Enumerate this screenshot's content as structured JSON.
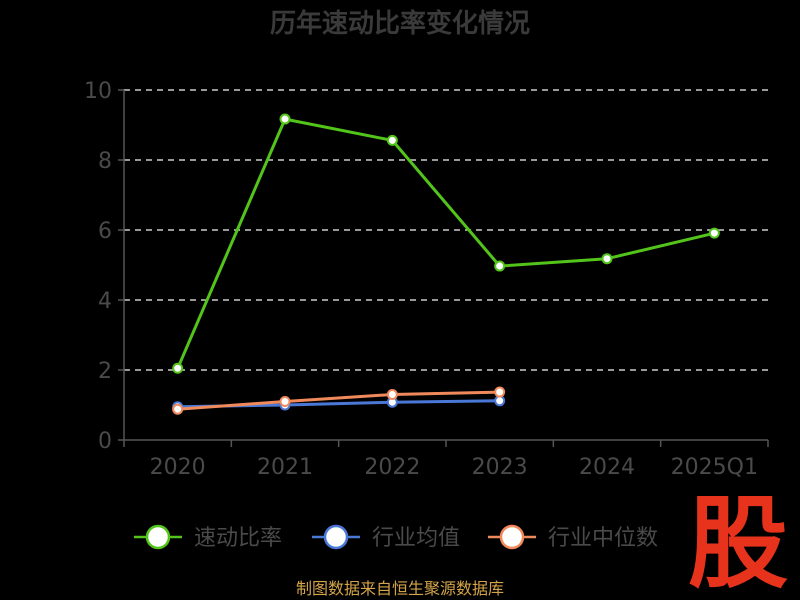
{
  "title": "历年速动比率变化情况",
  "source": "制图数据来自恒生聚源数据库",
  "logo": "股",
  "colors": {
    "background": "#000000",
    "grid": "#cccccc",
    "axis": "#555555",
    "text": "#4a4a4a"
  },
  "chart_data": {
    "type": "line",
    "categories": [
      "2020",
      "2021",
      "2022",
      "2023",
      "2024",
      "2025Q1"
    ],
    "ylim": [
      0,
      10
    ],
    "yticks": [
      "0",
      "2",
      "4",
      "6",
      "8",
      "10"
    ],
    "grid": true,
    "legend_position": "bottom",
    "series": [
      {
        "name": "速动比率",
        "color": "#52c41a",
        "values": [
          2.05,
          9.17,
          8.56,
          4.97,
          5.18,
          5.91
        ]
      },
      {
        "name": "行业均值",
        "color": "#4a78d6",
        "values": [
          0.95,
          1.0,
          1.08,
          1.12,
          null,
          null
        ]
      },
      {
        "name": "行业中位数",
        "color": "#f08a5c",
        "values": [
          0.88,
          1.1,
          1.3,
          1.37,
          null,
          null
        ]
      }
    ]
  }
}
